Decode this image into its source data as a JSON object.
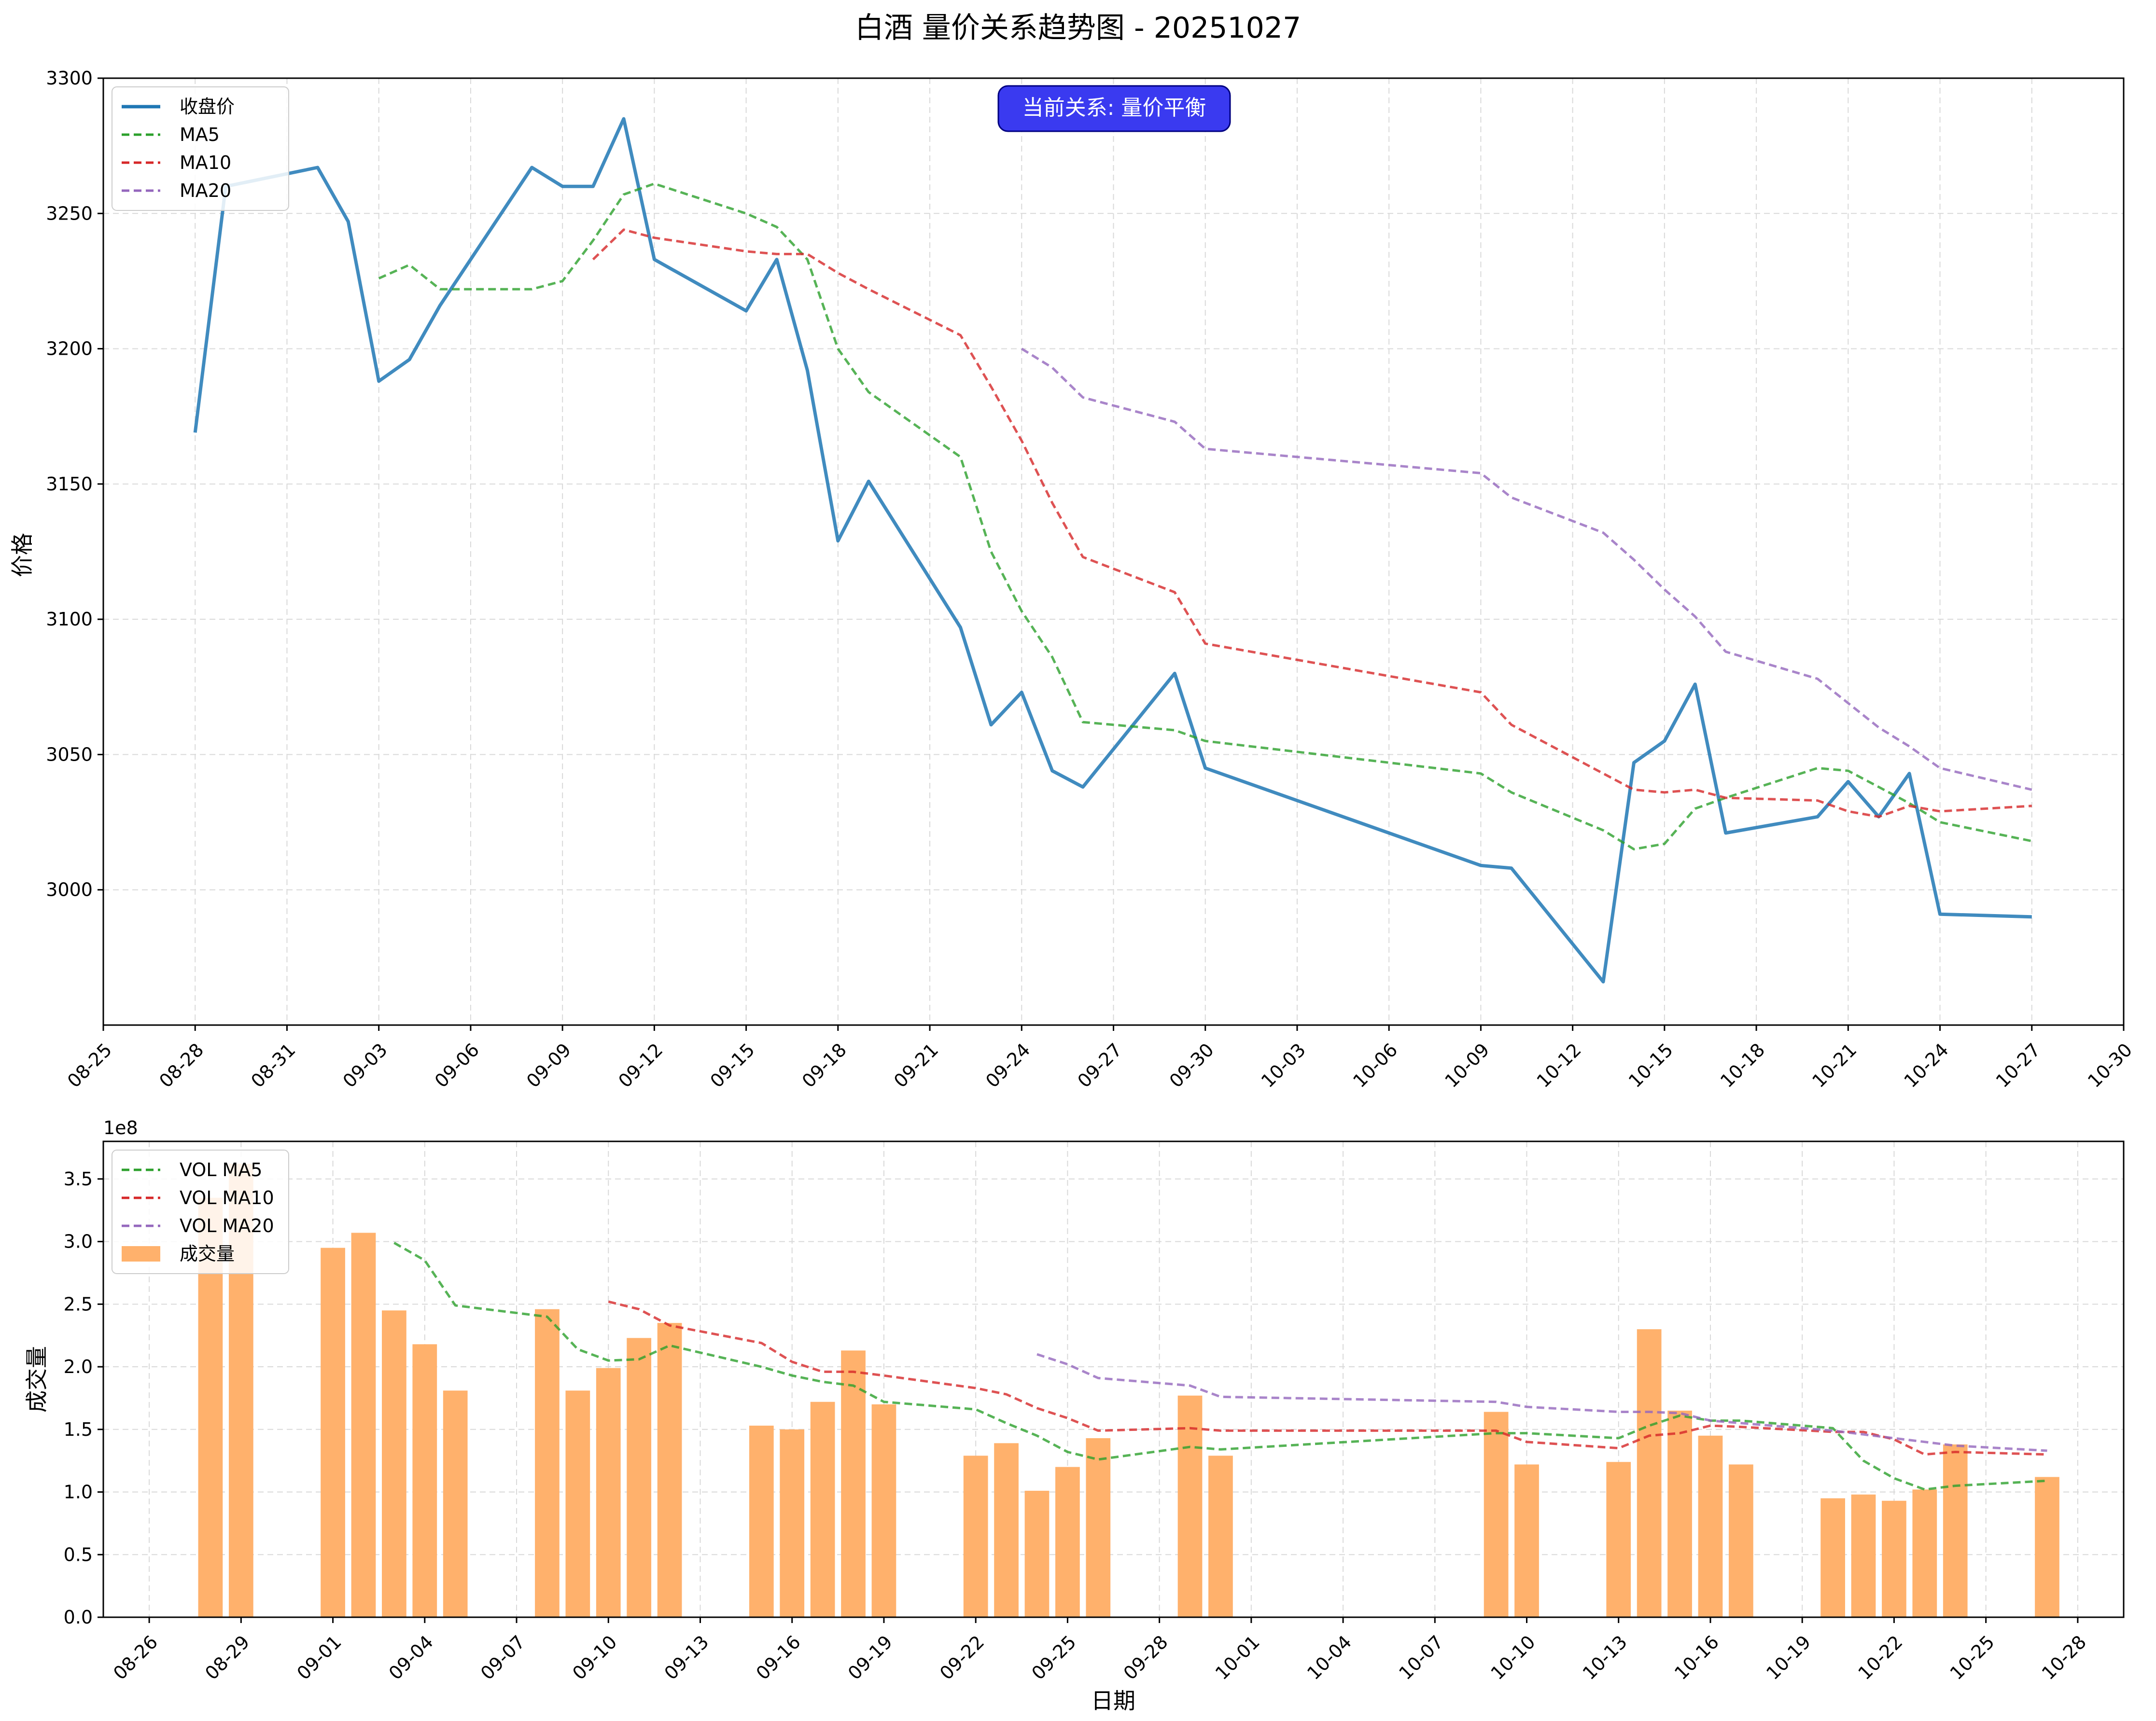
{
  "title": "白酒 量价关系趋势图 - 20251027",
  "chart_data": [
    {
      "type": "line",
      "name": "price-chart",
      "ylabel": "价格",
      "ylim": [
        2950,
        3300
      ],
      "yticks": [
        3000,
        3050,
        3100,
        3150,
        3200,
        3250,
        3300
      ],
      "xlim": [
        "2025-08-25",
        "2025-10-30"
      ],
      "xticks": [
        "2025-08-25",
        "2025-08-28",
        "2025-08-31",
        "2025-09-03",
        "2025-09-06",
        "2025-09-09",
        "2025-09-12",
        "2025-09-15",
        "2025-09-18",
        "2025-09-21",
        "2025-09-24",
        "2025-09-27",
        "2025-09-30",
        "2025-10-03",
        "2025-10-06",
        "2025-10-09",
        "2025-10-12",
        "2025-10-15",
        "2025-10-18",
        "2025-10-21",
        "2025-10-24",
        "2025-10-27",
        "2025-10-30"
      ],
      "xticklabels": [
        "08-25",
        "08-28",
        "08-31",
        "09-03",
        "09-06",
        "09-09",
        "09-12",
        "09-15",
        "09-18",
        "09-21",
        "09-24",
        "09-27",
        "09-30",
        "10-03",
        "10-06",
        "10-09",
        "10-12",
        "10-15",
        "10-18",
        "10-21",
        "10-24",
        "10-27",
        "10-30"
      ],
      "grid": true,
      "legend_position": "top-left",
      "annotation": "当前关系: 量价平衡",
      "series": [
        {
          "name": "收盘价",
          "style": "solid",
          "color": "#1f77b4",
          "x": [
            "2025-08-28",
            "2025-08-29",
            "2025-09-01",
            "2025-09-02",
            "2025-09-03",
            "2025-09-04",
            "2025-09-05",
            "2025-09-08",
            "2025-09-09",
            "2025-09-10",
            "2025-09-11",
            "2025-09-12",
            "2025-09-15",
            "2025-09-16",
            "2025-09-17",
            "2025-09-18",
            "2025-09-19",
            "2025-09-22",
            "2025-09-23",
            "2025-09-24",
            "2025-09-25",
            "2025-09-26",
            "2025-09-29",
            "2025-09-30",
            "2025-10-09",
            "2025-10-10",
            "2025-10-13",
            "2025-10-14",
            "2025-10-15",
            "2025-10-16",
            "2025-10-17",
            "2025-10-20",
            "2025-10-21",
            "2025-10-22",
            "2025-10-23",
            "2025-10-24",
            "2025-10-27"
          ],
          "y": [
            3169,
            3260,
            3267,
            3247,
            3188,
            3196,
            3216,
            3267,
            3260,
            3260,
            3285,
            3233,
            3214,
            3233,
            3192,
            3129,
            3151,
            3097,
            3061,
            3073,
            3044,
            3038,
            3080,
            3045,
            3009,
            3008,
            2966,
            3047,
            3055,
            3076,
            3021,
            3027,
            3040,
            3027,
            3043,
            2991,
            2990
          ]
        },
        {
          "name": "MA5",
          "style": "dashed",
          "color": "#2ca02c",
          "x": [
            "2025-09-03",
            "2025-09-04",
            "2025-09-05",
            "2025-09-08",
            "2025-09-09",
            "2025-09-10",
            "2025-09-11",
            "2025-09-12",
            "2025-09-15",
            "2025-09-16",
            "2025-09-17",
            "2025-09-18",
            "2025-09-19",
            "2025-09-22",
            "2025-09-23",
            "2025-09-24",
            "2025-09-25",
            "2025-09-26",
            "2025-09-29",
            "2025-09-30",
            "2025-10-09",
            "2025-10-10",
            "2025-10-13",
            "2025-10-14",
            "2025-10-15",
            "2025-10-16",
            "2025-10-17",
            "2025-10-20",
            "2025-10-21",
            "2025-10-22",
            "2025-10-23",
            "2025-10-24",
            "2025-10-27"
          ],
          "y": [
            3226,
            3231,
            3222,
            3222,
            3225,
            3240,
            3257,
            3261,
            3250,
            3245,
            3233,
            3200,
            3184,
            3160,
            3125,
            3103,
            3086,
            3062,
            3059,
            3055,
            3043,
            3036,
            3022,
            3015,
            3017,
            3030,
            3034,
            3045,
            3044,
            3038,
            3032,
            3025,
            3018
          ]
        },
        {
          "name": "MA10",
          "style": "dashed",
          "color": "#d62728",
          "x": [
            "2025-09-10",
            "2025-09-11",
            "2025-09-12",
            "2025-09-15",
            "2025-09-16",
            "2025-09-17",
            "2025-09-18",
            "2025-09-19",
            "2025-09-22",
            "2025-09-23",
            "2025-09-24",
            "2025-09-25",
            "2025-09-26",
            "2025-09-29",
            "2025-09-30",
            "2025-10-09",
            "2025-10-10",
            "2025-10-13",
            "2025-10-14",
            "2025-10-15",
            "2025-10-16",
            "2025-10-17",
            "2025-10-20",
            "2025-10-21",
            "2025-10-22",
            "2025-10-23",
            "2025-10-24",
            "2025-10-27"
          ],
          "y": [
            3233,
            3244,
            3241,
            3236,
            3235,
            3235,
            3228,
            3222,
            3205,
            3186,
            3166,
            3143,
            3123,
            3110,
            3091,
            3073,
            3061,
            3043,
            3037,
            3036,
            3037,
            3034,
            3033,
            3029,
            3027,
            3031,
            3029,
            3031
          ]
        },
        {
          "name": "MA20",
          "style": "dashed",
          "color": "#9467bd",
          "x": [
            "2025-09-24",
            "2025-09-25",
            "2025-09-26",
            "2025-09-29",
            "2025-09-30",
            "2025-10-09",
            "2025-10-10",
            "2025-10-13",
            "2025-10-14",
            "2025-10-15",
            "2025-10-16",
            "2025-10-17",
            "2025-10-20",
            "2025-10-21",
            "2025-10-22",
            "2025-10-23",
            "2025-10-24",
            "2025-10-27"
          ],
          "y": [
            3200,
            3193,
            3182,
            3173,
            3163,
            3154,
            3145,
            3132,
            3122,
            3111,
            3101,
            3088,
            3078,
            3069,
            3060,
            3053,
            3045,
            3037
          ]
        }
      ]
    },
    {
      "type": "bar",
      "name": "volume-chart",
      "ylabel": "成交量",
      "xlabel": "日期",
      "yscale_label": "1e8",
      "ylim": [
        0,
        3.8
      ],
      "yticks": [
        0.0,
        0.5,
        1.0,
        1.5,
        2.0,
        2.5,
        3.0,
        3.5
      ],
      "yticklabels": [
        "0.0",
        "0.5",
        "1.0",
        "1.5",
        "2.0",
        "2.5",
        "3.0",
        "3.5"
      ],
      "xlim": [
        "2025-08-24 12:00",
        "2025-10-29 12:00"
      ],
      "xticks": [
        "2025-08-26",
        "2025-08-29",
        "2025-09-01",
        "2025-09-04",
        "2025-09-07",
        "2025-09-10",
        "2025-09-13",
        "2025-09-16",
        "2025-09-19",
        "2025-09-22",
        "2025-09-25",
        "2025-09-28",
        "2025-10-01",
        "2025-10-04",
        "2025-10-07",
        "2025-10-10",
        "2025-10-13",
        "2025-10-16",
        "2025-10-19",
        "2025-10-22",
        "2025-10-25",
        "2025-10-28"
      ],
      "xticklabels": [
        "08-26",
        "08-29",
        "09-01",
        "09-04",
        "09-07",
        "09-10",
        "09-13",
        "09-16",
        "09-19",
        "09-22",
        "09-25",
        "09-28",
        "10-01",
        "10-04",
        "10-07",
        "10-10",
        "10-13",
        "10-16",
        "10-19",
        "10-22",
        "10-25",
        "10-28"
      ],
      "grid": true,
      "legend_position": "top-left",
      "bar_color": "#ffb16c",
      "bars": {
        "name": "成交量",
        "x": [
          "2025-08-28",
          "2025-08-29",
          "2025-09-01",
          "2025-09-02",
          "2025-09-03",
          "2025-09-04",
          "2025-09-05",
          "2025-09-08",
          "2025-09-09",
          "2025-09-10",
          "2025-09-11",
          "2025-09-12",
          "2025-09-15",
          "2025-09-16",
          "2025-09-17",
          "2025-09-18",
          "2025-09-19",
          "2025-09-22",
          "2025-09-23",
          "2025-09-24",
          "2025-09-25",
          "2025-09-26",
          "2025-09-29",
          "2025-09-30",
          "2025-10-09",
          "2025-10-10",
          "2025-10-13",
          "2025-10-14",
          "2025-10-15",
          "2025-10-16",
          "2025-10-17",
          "2025-10-20",
          "2025-10-21",
          "2025-10-22",
          "2025-10-23",
          "2025-10-24",
          "2025-10-27"
        ],
        "y": [
          3.35,
          3.62,
          2.95,
          3.07,
          2.45,
          2.18,
          1.81,
          2.46,
          1.81,
          1.99,
          2.23,
          2.35,
          1.53,
          1.5,
          1.72,
          2.13,
          1.7,
          1.29,
          1.39,
          1.01,
          1.2,
          1.43,
          1.77,
          1.29,
          1.64,
          1.22,
          1.24,
          2.3,
          1.65,
          1.45,
          1.22,
          0.95,
          0.98,
          0.93,
          1.02,
          1.38,
          1.12
        ]
      },
      "series": [
        {
          "name": "VOL MA5",
          "style": "dashed",
          "color": "#2ca02c",
          "x": [
            "2025-09-03",
            "2025-09-04",
            "2025-09-05",
            "2025-09-08",
            "2025-09-09",
            "2025-09-10",
            "2025-09-11",
            "2025-09-12",
            "2025-09-15",
            "2025-09-16",
            "2025-09-17",
            "2025-09-18",
            "2025-09-19",
            "2025-09-22",
            "2025-09-23",
            "2025-09-24",
            "2025-09-25",
            "2025-09-26",
            "2025-09-29",
            "2025-09-30",
            "2025-10-09",
            "2025-10-10",
            "2025-10-13",
            "2025-10-14",
            "2025-10-15",
            "2025-10-16",
            "2025-10-17",
            "2025-10-20",
            "2025-10-21",
            "2025-10-22",
            "2025-10-23",
            "2025-10-24",
            "2025-10-27"
          ],
          "y": [
            2.99,
            2.85,
            2.49,
            2.4,
            2.14,
            2.05,
            2.06,
            2.17,
            2.0,
            1.93,
            1.88,
            1.85,
            1.72,
            1.66,
            1.55,
            1.45,
            1.32,
            1.26,
            1.36,
            1.34,
            1.47,
            1.47,
            1.43,
            1.53,
            1.61,
            1.57,
            1.57,
            1.51,
            1.25,
            1.11,
            1.02,
            1.05,
            1.09
          ]
        },
        {
          "name": "VOL MA10",
          "style": "dashed",
          "color": "#d62728",
          "x": [
            "2025-09-10",
            "2025-09-11",
            "2025-09-12",
            "2025-09-15",
            "2025-09-16",
            "2025-09-17",
            "2025-09-18",
            "2025-09-19",
            "2025-09-22",
            "2025-09-23",
            "2025-09-24",
            "2025-09-25",
            "2025-09-26",
            "2025-09-29",
            "2025-09-30",
            "2025-10-09",
            "2025-10-10",
            "2025-10-13",
            "2025-10-14",
            "2025-10-15",
            "2025-10-16",
            "2025-10-17",
            "2025-10-20",
            "2025-10-21",
            "2025-10-22",
            "2025-10-23",
            "2025-10-24",
            "2025-10-27"
          ],
          "y": [
            2.52,
            2.46,
            2.33,
            2.19,
            2.04,
            1.96,
            1.96,
            1.93,
            1.83,
            1.78,
            1.67,
            1.59,
            1.49,
            1.51,
            1.49,
            1.49,
            1.4,
            1.35,
            1.45,
            1.47,
            1.53,
            1.52,
            1.48,
            1.48,
            1.42,
            1.3,
            1.32,
            1.3
          ]
        },
        {
          "name": "VOL MA20",
          "style": "dashed",
          "color": "#9467bd",
          "x": [
            "2025-09-24",
            "2025-09-25",
            "2025-09-26",
            "2025-09-29",
            "2025-09-30",
            "2025-10-09",
            "2025-10-10",
            "2025-10-13",
            "2025-10-14",
            "2025-10-15",
            "2025-10-16",
            "2025-10-17",
            "2025-10-20",
            "2025-10-21",
            "2025-10-22",
            "2025-10-23",
            "2025-10-24",
            "2025-10-27"
          ],
          "y": [
            2.1,
            2.02,
            1.91,
            1.85,
            1.76,
            1.72,
            1.68,
            1.64,
            1.64,
            1.63,
            1.57,
            1.55,
            1.49,
            1.46,
            1.43,
            1.4,
            1.37,
            1.33
          ]
        }
      ]
    }
  ],
  "colors": {
    "badge_fill": "#3a3af0",
    "badge_stroke": "#000080",
    "grid": "#d9d9d9"
  }
}
